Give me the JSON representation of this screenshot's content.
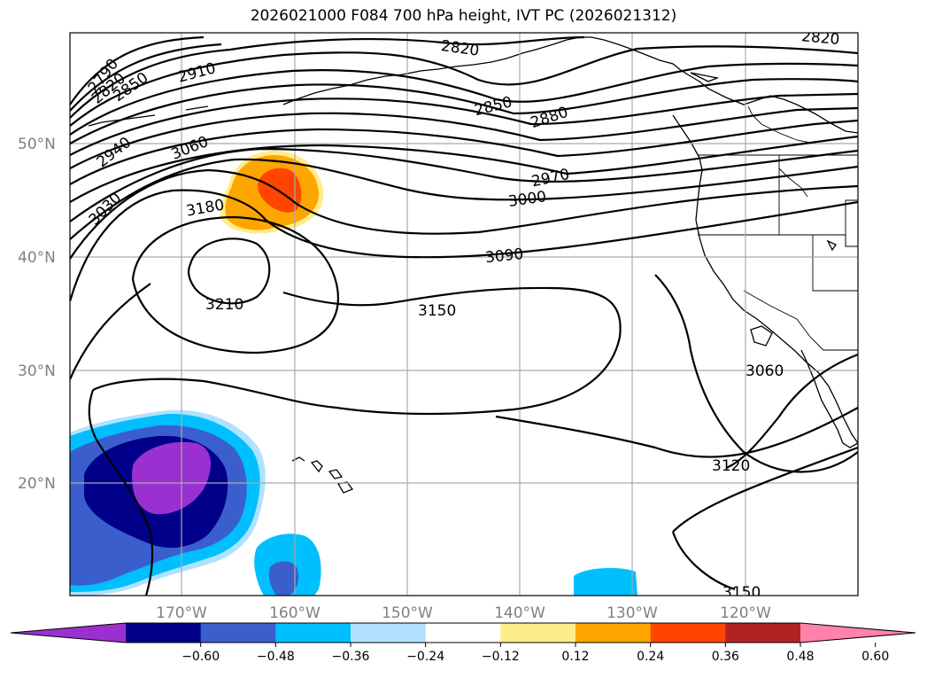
{
  "title": "2026021000 F084 700 hPa height, IVT PC (2026021312)",
  "map": {
    "lat_labels": [
      "50°N",
      "40°N",
      "30°N",
      "20°N"
    ],
    "lon_labels": [
      "170°W",
      "160°W",
      "150°W",
      "140°W",
      "130°W",
      "120°W"
    ],
    "contour_labels": [
      "2790",
      "2820",
      "2850",
      "2910",
      "2820",
      "2820",
      "2850",
      "2880",
      "2940",
      "3060",
      "2970",
      "3000",
      "3030",
      "3180",
      "3090",
      "3210",
      "3150",
      "3060",
      "3120",
      "3150"
    ]
  },
  "colorbar": {
    "colors": [
      "#9b30d0",
      "#00008b",
      "#3a5fcd",
      "#00bfff",
      "#b0e2ff",
      "#ffffff",
      "#ffec8b",
      "#ffa500",
      "#ff4500",
      "#b22222",
      "#ff82ab"
    ],
    "tick_labels": [
      "−0.60",
      "−0.48",
      "−0.36",
      "−0.24",
      "−0.12",
      "0.12",
      "0.24",
      "0.36",
      "0.48",
      "0.60"
    ]
  }
}
